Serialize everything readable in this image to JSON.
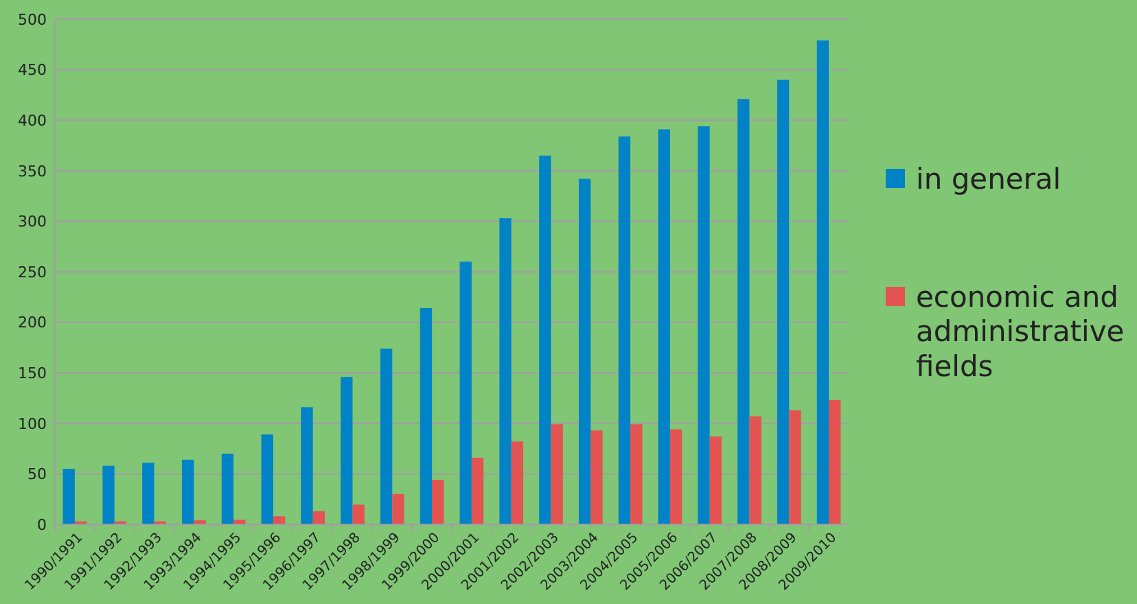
{
  "chart_data": {
    "type": "bar",
    "categories": [
      "1990/1991",
      "1991/1992",
      "1992/1993",
      "1993/1994",
      "1994/1995",
      "1995/1996",
      "1996/1997",
      "1997/1998",
      "1998/1999",
      "1999/2000",
      "2000/2001",
      "2001/2002",
      "2002/2003",
      "2003/2004",
      "2004/2005",
      "2005/2006",
      "2006/2007",
      "2007/2008",
      "2008/2009",
      "2009/2010"
    ],
    "series": [
      {
        "name": "in general",
        "color": "#0083c6",
        "values": [
          55,
          58,
          61,
          64,
          70,
          89,
          116,
          146,
          174,
          214,
          260,
          303,
          365,
          342,
          384,
          391,
          394,
          421,
          440,
          479
        ]
      },
      {
        "name": "economic and administrative fields",
        "color": "#e35352",
        "values": [
          3,
          3,
          3,
          4,
          4.5,
          8,
          13,
          19.5,
          30,
          44,
          66,
          82,
          99,
          93,
          99,
          94,
          87,
          107,
          113,
          123
        ]
      }
    ],
    "ylim": [
      0,
      500
    ],
    "yticks": [
      0,
      50,
      100,
      150,
      200,
      250,
      300,
      350,
      400,
      450,
      500
    ],
    "grid": "y",
    "legend": "right"
  }
}
